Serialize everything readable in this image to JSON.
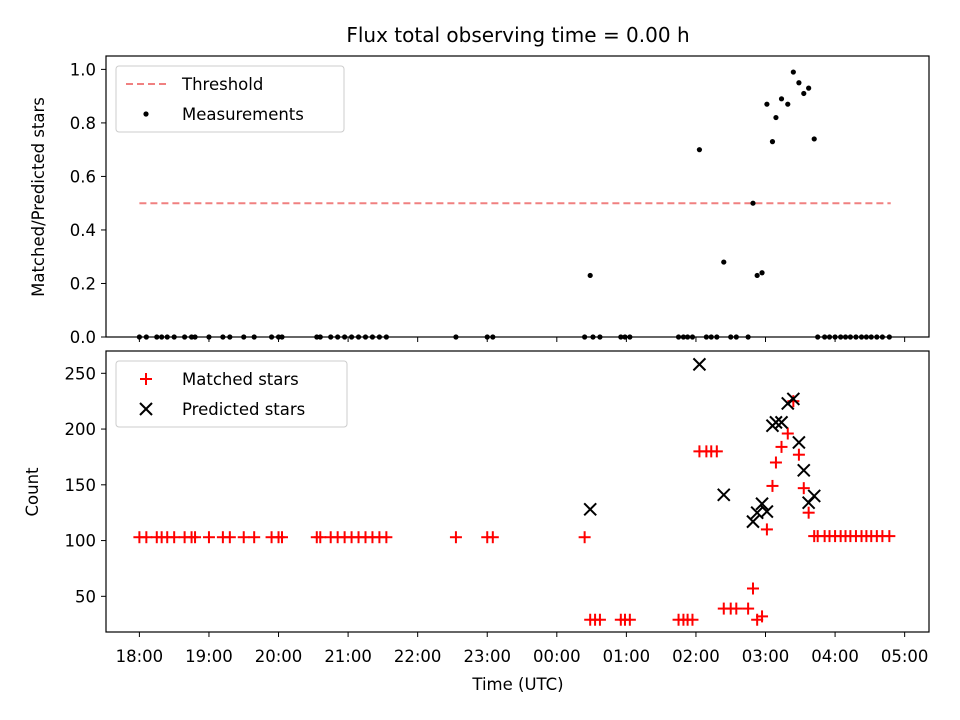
{
  "chart_data": {
    "type": "scatter",
    "title": "Flux total observing time = 0.00 h",
    "xlabel": "Time (UTC)",
    "x_ticks": [
      "18:00",
      "19:00",
      "20:00",
      "21:00",
      "22:00",
      "23:00",
      "00:00",
      "01:00",
      "02:00",
      "03:00",
      "04:00",
      "05:00"
    ],
    "x_range_hours": [
      17.52,
      29.35
    ],
    "panels": [
      {
        "id": "ratio",
        "ylabel": "Matched/Predicted stars",
        "ylim": [
          0,
          1.05
        ],
        "yticks": [
          "0.0",
          "0.2",
          "0.4",
          "0.6",
          "0.8",
          "1.0"
        ],
        "ytick_values": [
          0,
          0.2,
          0.4,
          0.6,
          0.8,
          1.0
        ],
        "legend": {
          "position": "upper-left",
          "entries": [
            "Threshold",
            "Measurements"
          ]
        },
        "threshold": {
          "name": "Threshold",
          "value": 0.5,
          "x_start": 18.0,
          "x_end": 28.8,
          "color": "#f08080"
        },
        "measurements": {
          "name": "Measurements",
          "color": "#000000",
          "points": [
            [
              18.0,
              0
            ],
            [
              18.1,
              0
            ],
            [
              18.25,
              0
            ],
            [
              18.32,
              0
            ],
            [
              18.4,
              0
            ],
            [
              18.5,
              0
            ],
            [
              18.65,
              0
            ],
            [
              18.75,
              0
            ],
            [
              18.8,
              0
            ],
            [
              19.0,
              0
            ],
            [
              19.2,
              0
            ],
            [
              19.3,
              0
            ],
            [
              19.5,
              0
            ],
            [
              19.65,
              0
            ],
            [
              19.9,
              0
            ],
            [
              20.0,
              0
            ],
            [
              20.05,
              0
            ],
            [
              20.55,
              0
            ],
            [
              20.6,
              0
            ],
            [
              20.75,
              0
            ],
            [
              20.85,
              0
            ],
            [
              20.95,
              0
            ],
            [
              21.05,
              0
            ],
            [
              21.15,
              0
            ],
            [
              21.25,
              0
            ],
            [
              21.35,
              0
            ],
            [
              21.45,
              0
            ],
            [
              21.55,
              0
            ],
            [
              22.55,
              0
            ],
            [
              23.0,
              0
            ],
            [
              23.08,
              0
            ],
            [
              24.4,
              0
            ],
            [
              24.48,
              0.23
            ],
            [
              24.52,
              0
            ],
            [
              24.62,
              0
            ],
            [
              24.92,
              0
            ],
            [
              24.98,
              0
            ],
            [
              25.05,
              0
            ],
            [
              25.75,
              0
            ],
            [
              25.82,
              0
            ],
            [
              25.88,
              0
            ],
            [
              25.95,
              0
            ],
            [
              26.05,
              0.7
            ],
            [
              26.15,
              0
            ],
            [
              26.22,
              0
            ],
            [
              26.3,
              0
            ],
            [
              26.4,
              0.28
            ],
            [
              26.5,
              0
            ],
            [
              26.58,
              0
            ],
            [
              26.75,
              0
            ],
            [
              26.82,
              0.5
            ],
            [
              26.88,
              0.23
            ],
            [
              26.95,
              0.24
            ],
            [
              27.02,
              0.87
            ],
            [
              27.1,
              0.73
            ],
            [
              27.15,
              0.82
            ],
            [
              27.23,
              0.89
            ],
            [
              27.32,
              0.87
            ],
            [
              27.4,
              0.99
            ],
            [
              27.48,
              0.95
            ],
            [
              27.55,
              0.91
            ],
            [
              27.62,
              0.93
            ],
            [
              27.7,
              0.74
            ],
            [
              27.75,
              0
            ],
            [
              27.85,
              0
            ],
            [
              27.92,
              0
            ],
            [
              28.0,
              0
            ],
            [
              28.08,
              0
            ],
            [
              28.15,
              0
            ],
            [
              28.22,
              0
            ],
            [
              28.3,
              0
            ],
            [
              28.38,
              0
            ],
            [
              28.45,
              0
            ],
            [
              28.52,
              0
            ],
            [
              28.6,
              0
            ],
            [
              28.68,
              0
            ],
            [
              28.78,
              0
            ]
          ]
        }
      },
      {
        "id": "counts",
        "ylabel": "Count",
        "ylim": [
          18,
          270
        ],
        "yticks": [
          "50",
          "100",
          "150",
          "200",
          "250"
        ],
        "ytick_values": [
          50,
          100,
          150,
          200,
          250
        ],
        "legend": {
          "position": "upper-left",
          "entries": [
            "Matched stars",
            "Predicted stars"
          ]
        },
        "series": [
          {
            "name": "Matched stars",
            "marker": "plus",
            "color": "#ff0000",
            "points": [
              [
                18.0,
                103
              ],
              [
                18.1,
                103
              ],
              [
                18.25,
                103
              ],
              [
                18.32,
                103
              ],
              [
                18.4,
                103
              ],
              [
                18.5,
                103
              ],
              [
                18.65,
                103
              ],
              [
                18.75,
                103
              ],
              [
                18.8,
                103
              ],
              [
                19.0,
                103
              ],
              [
                19.2,
                103
              ],
              [
                19.3,
                103
              ],
              [
                19.5,
                103
              ],
              [
                19.65,
                103
              ],
              [
                19.9,
                103
              ],
              [
                20.0,
                103
              ],
              [
                20.05,
                103
              ],
              [
                20.55,
                103
              ],
              [
                20.6,
                103
              ],
              [
                20.75,
                103
              ],
              [
                20.85,
                103
              ],
              [
                20.95,
                103
              ],
              [
                21.05,
                103
              ],
              [
                21.15,
                103
              ],
              [
                21.25,
                103
              ],
              [
                21.35,
                103
              ],
              [
                21.45,
                103
              ],
              [
                21.55,
                103
              ],
              [
                22.55,
                103
              ],
              [
                23.0,
                103
              ],
              [
                23.08,
                103
              ],
              [
                24.4,
                103
              ],
              [
                24.48,
                29
              ],
              [
                24.55,
                29
              ],
              [
                24.62,
                29
              ],
              [
                24.92,
                29
              ],
              [
                24.98,
                29
              ],
              [
                25.05,
                29
              ],
              [
                25.75,
                29
              ],
              [
                25.82,
                29
              ],
              [
                25.88,
                29
              ],
              [
                25.95,
                29
              ],
              [
                26.05,
                180
              ],
              [
                26.15,
                180
              ],
              [
                26.22,
                180
              ],
              [
                26.3,
                180
              ],
              [
                26.4,
                39
              ],
              [
                26.5,
                39
              ],
              [
                26.58,
                39
              ],
              [
                26.75,
                39
              ],
              [
                26.82,
                57
              ],
              [
                26.88,
                29
              ],
              [
                26.95,
                32
              ],
              [
                27.02,
                110
              ],
              [
                27.1,
                149
              ],
              [
                27.15,
                170
              ],
              [
                27.23,
                184
              ],
              [
                27.32,
                196
              ],
              [
                27.4,
                225
              ],
              [
                27.48,
                177
              ],
              [
                27.55,
                147
              ],
              [
                27.62,
                125
              ],
              [
                27.7,
                104
              ],
              [
                27.75,
                104
              ],
              [
                27.85,
                104
              ],
              [
                27.92,
                104
              ],
              [
                28.0,
                104
              ],
              [
                28.08,
                104
              ],
              [
                28.15,
                104
              ],
              [
                28.22,
                104
              ],
              [
                28.3,
                104
              ],
              [
                28.38,
                104
              ],
              [
                28.45,
                104
              ],
              [
                28.52,
                104
              ],
              [
                28.6,
                104
              ],
              [
                28.68,
                104
              ],
              [
                28.78,
                104
              ]
            ]
          },
          {
            "name": "Predicted stars",
            "marker": "x",
            "color": "#000000",
            "points": [
              [
                24.48,
                128
              ],
              [
                26.05,
                258
              ],
              [
                26.4,
                141
              ],
              [
                26.82,
                117
              ],
              [
                26.88,
                125
              ],
              [
                26.95,
                133
              ],
              [
                27.02,
                126
              ],
              [
                27.1,
                203
              ],
              [
                27.15,
                206
              ],
              [
                27.23,
                206
              ],
              [
                27.32,
                223
              ],
              [
                27.4,
                227
              ],
              [
                27.48,
                188
              ],
              [
                27.55,
                163
              ],
              [
                27.62,
                134
              ],
              [
                27.7,
                140
              ]
            ]
          }
        ]
      }
    ]
  }
}
